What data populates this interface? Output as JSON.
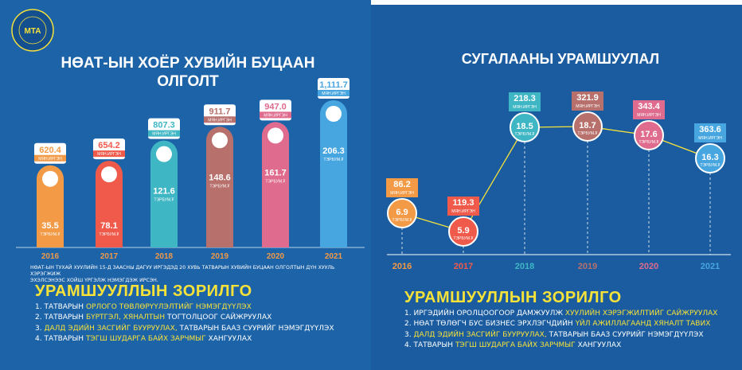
{
  "colors": {
    "background": "#1d63a8",
    "panel": "#1a5a9c",
    "accent_yellow": "#f7e23a",
    "c2016": "#f29a46",
    "c2017": "#ef5a4b",
    "c2018": "#3fb6c4",
    "c2019": "#b7706c",
    "c2020": "#df6b8e",
    "c2021": "#47a6df",
    "year_label": "#f29a46"
  },
  "logo": {
    "text": "МТА"
  },
  "left": {
    "title_line1": "НӨАТ-ЫН ХОЁР ХУВИЙН БУЦААН",
    "title_line2": "ОЛГОЛТ",
    "note_line1": "НӨАТ-ЫН ТУХАЙ ХУУЛИЙН 15-Д ЗААСНЫ ДАГУУ ИРГЭДЭД 20 ХУВЬ ТАТВАРЫН ХУВИЙН БУЦААН ОЛГОЛТЫН ДҮН ХУУЛЬ ХЭРЭГЖИЖ",
    "note_line2": "ЭХЭЛСЭНЭЭС ХОЙШ ҮРГЭЛЖ НЭМЭГДЭЖ ИРСЭН."
  },
  "right": {
    "title": "СУГАЛААНЫ УРАМШУУЛАЛ"
  },
  "chart_data": [
    {
      "type": "bar",
      "title": "НӨАТ-ЫН ХОЁР ХУВИЙН БУЦААН ОЛГОЛТ",
      "categories": [
        "2016",
        "2017",
        "2018",
        "2019",
        "2020",
        "2021"
      ],
      "series": [
        {
          "values": [
            620.4,
            654.2,
            807.3,
            911.7,
            947.0,
            1111.7
          ],
          "labels": [
            "620.4",
            "654.2",
            "807.3",
            "911.7",
            "947.0",
            "1,111.7"
          ],
          "unit": "МЯН.ИРГЭН"
        },
        {
          "values": [
            35.5,
            78.1,
            121.6,
            148.6,
            161.7,
            206.3
          ],
          "labels": [
            "35.5",
            "78.1",
            "121.6",
            "148.6",
            "161.7",
            "206.3"
          ],
          "unit": "ТЭРБУМ.₮"
        }
      ]
    },
    {
      "type": "line",
      "title": "СУГАЛААНЫ УРАМШУУЛАЛ",
      "categories": [
        "2016",
        "2017",
        "2018",
        "2019",
        "2020",
        "2021"
      ],
      "series": [
        {
          "values": [
            6.9,
            5.9,
            18.5,
            18.7,
            17.6,
            16.3
          ],
          "labels": [
            "6.9",
            "5.9",
            "18.5",
            "18.7",
            "17.6",
            "16.3"
          ],
          "unit": "ТЭРБУМ.₮"
        },
        {
          "values": [
            86.2,
            119.3,
            218.3,
            321.9,
            343.4,
            363.6
          ],
          "labels": [
            "86.2",
            "119.3",
            "218.3",
            "321.9",
            "343.4",
            "363.6"
          ],
          "unit": "МЯН.ИРГЭН"
        }
      ]
    }
  ],
  "goals_left": {
    "heading": "УРАМШУУЛЛЫН ЗОРИЛГО",
    "items": [
      {
        "pre": "1. ТАТВАРЫН ",
        "hl": "ОРЛОГО ТӨВЛӨРҮҮЛЭЛТИЙГ НЭМЭГДҮҮЛЭХ",
        "post": ""
      },
      {
        "pre": "2. ТАТВАРЫН ",
        "hl": "БҮРТГЭЛ, ХЯНАЛТЫН",
        "post": " ТОГТОЛЦООГ САЙЖРУУЛАХ"
      },
      {
        "pre": "3. ",
        "hl": "ДАЛД ЭДИЙН ЗАСГИЙГ БУУРУУЛАХ,",
        "post": " ТАТВАРЫН БААЗ СУУРИЙГ НЭМЭГДҮҮЛЭХ"
      },
      {
        "pre": "4. ТАТВАРЫН ",
        "hl": "ТЭГШ ШУДАРГА БАЙХ ЗАРЧМЫГ",
        "post": " ХАНГУУЛАХ"
      }
    ]
  },
  "goals_right": {
    "heading": "УРАМШУУЛЛЫН ЗОРИЛГО",
    "items": [
      {
        "pre": "1. ИРГЭДИЙН ОРОЛЦООГООР ДАМЖУУЛЖ ",
        "hl": "ХУУЛИЙН ХЭРЭГЖИЛТИЙГ САЙЖРУУЛАХ",
        "post": ""
      },
      {
        "pre": "2. НӨАТ ТӨЛӨГЧ БУС БИЗНЕС ЭРХЛЭГЧДИЙН ",
        "hl": "ҮЙЛ АЖИЛЛАГААНД ХЯНАЛТ ТАВИХ",
        "post": ""
      },
      {
        "pre": "3. ",
        "hl": "ДАЛД ЭДИЙН ЗАСГИЙГ БУУРУУЛАХ,",
        "post": " ТАТВАРЫН БААЗ СУУРИЙГ НЭМЭГДҮҮЛЭХ"
      },
      {
        "pre": "4. ТАТВАРЫН ",
        "hl": "ТЭГШ ШУДАРГА БАЙХ ЗАРЧМЫГ",
        "post": " ХАНГУУЛАХ"
      }
    ]
  }
}
